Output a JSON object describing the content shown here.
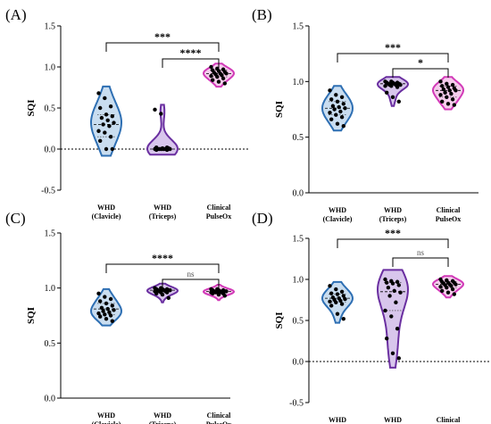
{
  "chart_data": [
    {
      "type": "violin",
      "panel_label": "(A)",
      "ylabel": "SQI",
      "ylim": [
        -0.5,
        1.5
      ],
      "yticks": [
        "-0.5",
        "0.0",
        "0.5",
        "1.0",
        "1.5"
      ],
      "zero_line": true,
      "categories": [
        "WHD\n(Clavicle)",
        "WHD\n(Triceps)",
        "Clinical\nPulseOx"
      ],
      "series": [
        {
          "color": "#2e6fb3",
          "fill": "#c9ddf0",
          "median": 0.3,
          "quartiles": [
            0.15,
            0.42
          ],
          "points": [
            0.68,
            0.62,
            0.52,
            0.5,
            0.42,
            0.4,
            0.38,
            0.35,
            0.32,
            0.3,
            0.28,
            0.22,
            0.2,
            0.15,
            0.1,
            0.0,
            0.0
          ]
        },
        {
          "color": "#6a2fa0",
          "fill": "#d8c6ec",
          "median": 0.0,
          "quartiles": [
            0.0,
            0.02
          ],
          "points": [
            0.48,
            0.43,
            0.02,
            0.02,
            0.01,
            0.01,
            0.0,
            0.0,
            0.0,
            0.0,
            0.0,
            0.0,
            0.0,
            -0.01,
            -0.01,
            0.0,
            0.0
          ]
        },
        {
          "color": "#d23ab8",
          "fill": "#f5cdec",
          "median": 0.92,
          "quartiles": [
            0.88,
            0.96
          ],
          "points": [
            1.0,
            0.98,
            0.97,
            0.96,
            0.95,
            0.94,
            0.93,
            0.92,
            0.92,
            0.91,
            0.9,
            0.89,
            0.88,
            0.86,
            0.84,
            0.82,
            0.8
          ]
        }
      ],
      "comparisons": [
        {
          "from": 0,
          "to": 2,
          "label": "***"
        },
        {
          "from": 1,
          "to": 2,
          "label": "****"
        }
      ]
    },
    {
      "type": "violin",
      "panel_label": "(B)",
      "ylabel": "SQI",
      "ylim": [
        0.0,
        1.5
      ],
      "yticks": [
        "0.0",
        "0.5",
        "1.0",
        "1.5"
      ],
      "zero_line": false,
      "categories": [
        "WHD\n(Clavicle)",
        "WHD\n(Triceps)",
        "Clinical\nPulseOx"
      ],
      "series": [
        {
          "color": "#2e6fb3",
          "fill": "#c9ddf0",
          "median": 0.76,
          "quartiles": [
            0.7,
            0.82
          ],
          "points": [
            0.92,
            0.88,
            0.86,
            0.84,
            0.82,
            0.8,
            0.78,
            0.77,
            0.76,
            0.75,
            0.73,
            0.72,
            0.7,
            0.68,
            0.66,
            0.62,
            0.6
          ]
        },
        {
          "color": "#6a2fa0",
          "fill": "#d8c6ec",
          "median": 0.98,
          "quartiles": [
            0.96,
            0.99
          ],
          "points": [
            1.0,
            1.0,
            0.99,
            0.99,
            0.99,
            0.98,
            0.98,
            0.98,
            0.97,
            0.97,
            0.97,
            0.96,
            0.96,
            0.95,
            0.9,
            0.86,
            0.82
          ]
        },
        {
          "color": "#d23ab8",
          "fill": "#f5cdec",
          "median": 0.92,
          "quartiles": [
            0.86,
            0.96
          ],
          "points": [
            1.0,
            0.98,
            0.97,
            0.96,
            0.95,
            0.94,
            0.93,
            0.92,
            0.92,
            0.9,
            0.89,
            0.88,
            0.86,
            0.84,
            0.82,
            0.8,
            0.79
          ]
        }
      ],
      "comparisons": [
        {
          "from": 0,
          "to": 2,
          "label": "***"
        },
        {
          "from": 1,
          "to": 2,
          "label": "*"
        }
      ]
    },
    {
      "type": "violin",
      "panel_label": "(C)",
      "ylabel": "SQI",
      "ylim": [
        0.0,
        1.5
      ],
      "yticks": [
        "0.0",
        "0.5",
        "1.0",
        "1.5"
      ],
      "zero_line": false,
      "categories": [
        "WHD\n(Clavicle)",
        "WHD\n(Triceps)",
        "Clinical\nPulseOx"
      ],
      "series": [
        {
          "color": "#2e6fb3",
          "fill": "#c9ddf0",
          "median": 0.81,
          "quartiles": [
            0.76,
            0.86
          ],
          "points": [
            0.95,
            0.92,
            0.9,
            0.88,
            0.86,
            0.84,
            0.82,
            0.81,
            0.8,
            0.79,
            0.78,
            0.77,
            0.76,
            0.75,
            0.74,
            0.72,
            0.7
          ]
        },
        {
          "color": "#6a2fa0",
          "fill": "#d8c6ec",
          "median": 0.98,
          "quartiles": [
            0.97,
            0.99
          ],
          "points": [
            1.0,
            1.0,
            0.99,
            0.99,
            0.99,
            0.98,
            0.98,
            0.98,
            0.98,
            0.97,
            0.97,
            0.97,
            0.96,
            0.96,
            0.95,
            0.94,
            0.91
          ]
        },
        {
          "color": "#d23ab8",
          "fill": "#f5cdec",
          "median": 0.97,
          "quartiles": [
            0.96,
            0.98
          ],
          "points": [
            0.99,
            0.99,
            0.98,
            0.98,
            0.98,
            0.97,
            0.97,
            0.97,
            0.97,
            0.96,
            0.96,
            0.96,
            0.96,
            0.95,
            0.95,
            0.94,
            0.93
          ]
        }
      ],
      "comparisons": [
        {
          "from": 0,
          "to": 2,
          "label": "****"
        },
        {
          "from": 1,
          "to": 2,
          "label": "ns"
        }
      ]
    },
    {
      "type": "violin",
      "panel_label": "(D)",
      "ylabel": "SQI",
      "ylim": [
        -0.5,
        1.5
      ],
      "yticks": [
        "-0.5",
        "0.0",
        "0.5",
        "1.0",
        "1.5"
      ],
      "zero_line": true,
      "categories": [
        "WHD\n(Clavicle)",
        "WHD\n(Triceps)",
        "Clinical\nPulseOx"
      ],
      "series": [
        {
          "color": "#2e6fb3",
          "fill": "#c9ddf0",
          "median": 0.77,
          "quartiles": [
            0.72,
            0.82
          ],
          "points": [
            0.92,
            0.88,
            0.85,
            0.83,
            0.82,
            0.8,
            0.78,
            0.77,
            0.76,
            0.75,
            0.74,
            0.73,
            0.72,
            0.7,
            0.68,
            0.58,
            0.52
          ]
        },
        {
          "color": "#6a2fa0",
          "fill": "#d8c6ec",
          "median": 0.85,
          "quartiles": [
            0.62,
            0.96
          ],
          "points": [
            1.0,
            0.98,
            0.97,
            0.96,
            0.95,
            0.93,
            0.9,
            0.86,
            0.84,
            0.8,
            0.72,
            0.62,
            0.55,
            0.4,
            0.28,
            0.1,
            0.04
          ]
        },
        {
          "color": "#d23ab8",
          "fill": "#f5cdec",
          "median": 0.94,
          "quartiles": [
            0.9,
            0.97
          ],
          "points": [
            1.0,
            0.99,
            0.98,
            0.97,
            0.96,
            0.96,
            0.95,
            0.94,
            0.94,
            0.93,
            0.92,
            0.91,
            0.9,
            0.88,
            0.86,
            0.84,
            0.82
          ]
        }
      ],
      "comparisons": [
        {
          "from": 0,
          "to": 2,
          "label": "***"
        },
        {
          "from": 1,
          "to": 2,
          "label": "ns"
        }
      ]
    }
  ]
}
